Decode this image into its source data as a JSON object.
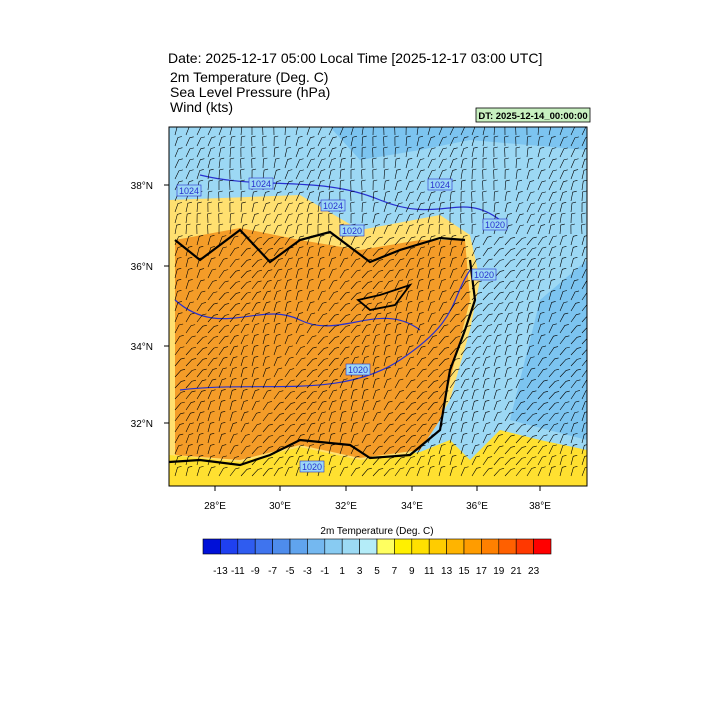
{
  "header": {
    "title": "Date: 2025-12-17  05:00 Local Time [2025-12-17  03:00 UTC]",
    "lines": [
      "2m Temperature (Deg. C)",
      "Sea Level Pressure   (hPa)",
      "Wind   (kts)"
    ],
    "dt_label": "DT: 2025-12-14_00:00:00"
  },
  "map": {
    "lat_labels": [
      "38°N",
      "36°N",
      "34°N",
      "32°N"
    ],
    "lon_labels": [
      "28°E",
      "30°E",
      "32°E",
      "34°E",
      "36°E",
      "38°E"
    ],
    "contour_labels": [
      "1024",
      "1024",
      "1024",
      "1020",
      "1024",
      "1020",
      "1020",
      "1020",
      "1020"
    ]
  },
  "colorbar": {
    "title": "2m Temperature (Deg. C)",
    "labels": [
      -13,
      -11,
      -9,
      -7,
      -5,
      -3,
      -1,
      1,
      3,
      5,
      7,
      9,
      11,
      13,
      15,
      17,
      19,
      21,
      23
    ],
    "colors": [
      "#0010d8",
      "#1f40f0",
      "#2f5cf0",
      "#3f74ee",
      "#4e8cec",
      "#60a4ee",
      "#74b8f0",
      "#88cbf2",
      "#9cdaf4",
      "#b4ecf8",
      "#ffff60",
      "#fff000",
      "#ffe000",
      "#ffcc00",
      "#ffb400",
      "#ff9c00",
      "#ff8000",
      "#ff6000",
      "#ff3800",
      "#ff0000"
    ]
  }
}
